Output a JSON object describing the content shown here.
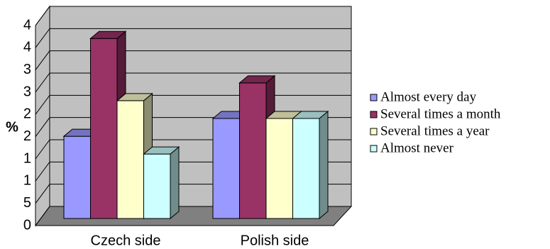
{
  "chart_data": {
    "type": "bar3d",
    "y_label": "%",
    "categories": [
      "Czech side",
      "Polish side"
    ],
    "series": [
      {
        "name": "Almost every day",
        "color": "#9999ff",
        "values": [
          1.85,
          2.25
        ]
      },
      {
        "name": "Several times a month",
        "color": "#993366",
        "values": [
          4.05,
          3.05
        ]
      },
      {
        "name": "Several times a year",
        "color": "#ffffcc",
        "values": [
          2.65,
          2.25
        ]
      },
      {
        "name": "Almost never",
        "color": "#ccffff",
        "values": [
          1.45,
          2.25
        ]
      }
    ],
    "ylim": [
      0,
      4.5
    ],
    "yticks": [
      0,
      {
        "value": 0.5,
        "label": "5"
      },
      1,
      {
        "value": 1.5,
        "label": "1"
      },
      2,
      {
        "value": 2.5,
        "label": "2"
      },
      3,
      {
        "value": 3.5,
        "label": "3"
      },
      4,
      {
        "value": 4.5,
        "label": "4"
      }
    ],
    "grid": true,
    "legend": "right"
  }
}
